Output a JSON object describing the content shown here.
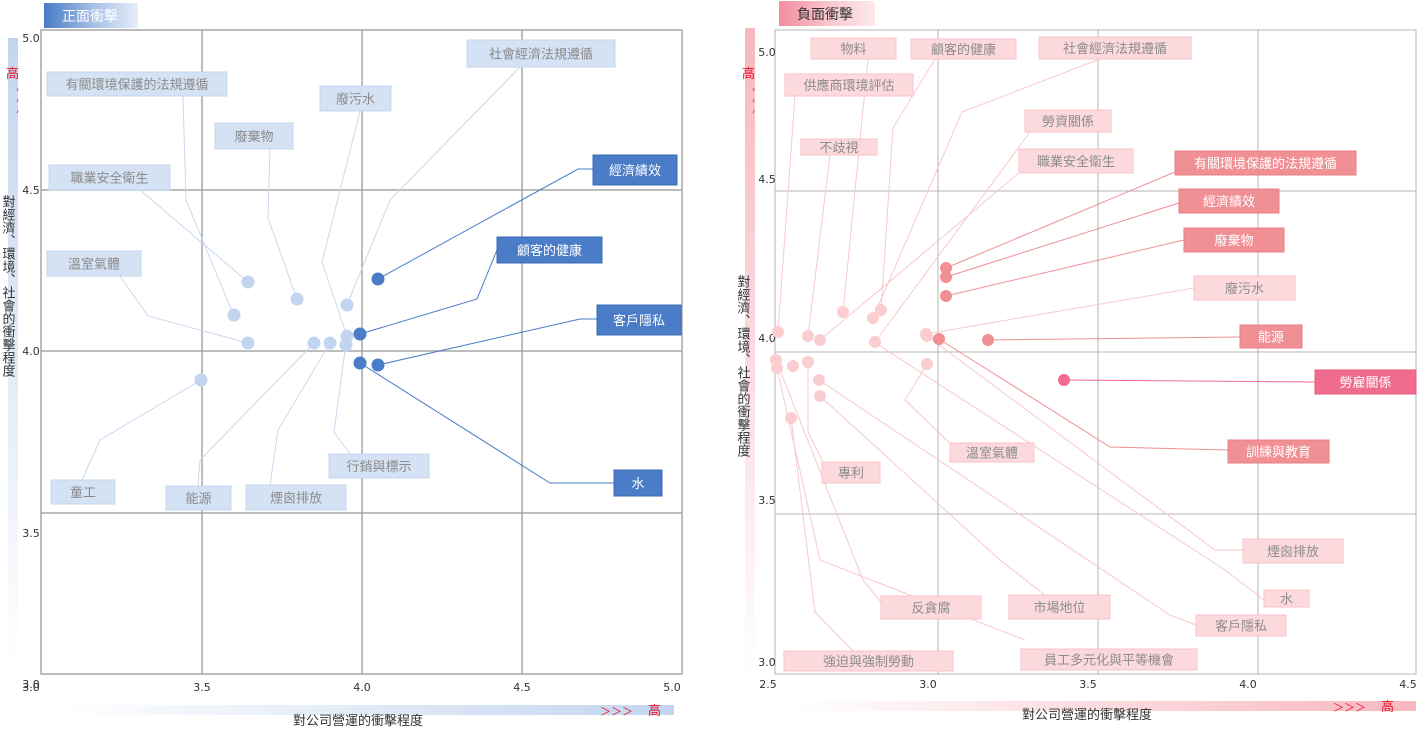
{
  "colors": {
    "pos_accent": "#4a7cc7",
    "pos_light": "#c3d5ee",
    "pos_label_text_dark": "#ffffff",
    "pos_label_text_light": "#8a8a8a",
    "neg_accent": "#f08f94",
    "neg_strong": "#f06c8e",
    "neg_light": "#fbcdd0",
    "grid": "#a6a6a6",
    "axis_text": "#333333",
    "high_marker": "#e8112d"
  },
  "common": {
    "y_axis_title": "對經濟、環境、社會的衝擊程度",
    "x_axis_title": "對公司營運的衝擊程度",
    "high_label": "高",
    "arrows": "＾＾＾",
    "x_arrows": "＞＞＞"
  },
  "chart_data": [
    {
      "type": "scatter",
      "title": "正面衝擊",
      "xlabel": "對公司營運的衝擊程度",
      "ylabel": "對經濟、環境、社會的衝擊程度",
      "xlim": [
        3.0,
        5.0
      ],
      "ylim": [
        2.0,
        5.0
      ],
      "x_ticks": [
        "3.0",
        "3.5",
        "4.0",
        "4.5",
        "5.0"
      ],
      "y_ticks": [
        "3.0",
        "3.5",
        "4.0",
        "4.5",
        "5.0"
      ],
      "grid": true,
      "points": [
        {
          "label": "經濟績效",
          "x": 4.05,
          "y": 4.22,
          "emphasis": "high"
        },
        {
          "label": "顧客的健康",
          "x": 4.0,
          "y": 4.05,
          "emphasis": "high"
        },
        {
          "label": "客戶隱私",
          "x": 4.05,
          "y": 3.96,
          "emphasis": "high"
        },
        {
          "label": "水",
          "x": 4.0,
          "y": 3.97,
          "emphasis": "high"
        },
        {
          "label": "社會經濟法規遵循",
          "x": 3.95,
          "y": 4.15,
          "emphasis": "low"
        },
        {
          "label": "廢污水",
          "x": 3.95,
          "y": 4.05,
          "emphasis": "low"
        },
        {
          "label": "有關環境保護的法規遵循",
          "x": 3.6,
          "y": 4.11,
          "emphasis": "low"
        },
        {
          "label": "廢棄物",
          "x": 3.8,
          "y": 4.16,
          "emphasis": "low"
        },
        {
          "label": "職業安全衛生",
          "x": 3.65,
          "y": 4.22,
          "emphasis": "low"
        },
        {
          "label": "溫室氣體",
          "x": 3.65,
          "y": 4.03,
          "emphasis": "low"
        },
        {
          "label": "童工",
          "x": 3.5,
          "y": 3.91,
          "emphasis": "low"
        },
        {
          "label": "能源",
          "x": 3.9,
          "y": 4.03,
          "emphasis": "low"
        },
        {
          "label": "煙囪排放",
          "x": 3.85,
          "y": 4.03,
          "emphasis": "low"
        },
        {
          "label": "行銷與標示",
          "x": 3.95,
          "y": 4.02,
          "emphasis": "low"
        }
      ]
    },
    {
      "type": "scatter",
      "title": "負面衝擊",
      "xlabel": "對公司營運的衝擊程度",
      "ylabel": "對經濟、環境、社會的衝擊程度",
      "xlim": [
        2.5,
        4.5
      ],
      "ylim": [
        2.0,
        5.0
      ],
      "x_ticks": [
        "2.5",
        "3.0",
        "3.5",
        "4.0",
        "4.5"
      ],
      "y_ticks": [
        "3.0",
        "3.5",
        "4.0",
        "4.5",
        "5.0"
      ],
      "grid": true,
      "points": [
        {
          "label": "勞雇關係",
          "x": 3.42,
          "y": 3.9,
          "emphasis": "top"
        },
        {
          "label": "有關環境保護的法規遵循",
          "x": 3.05,
          "y": 4.23,
          "emphasis": "high"
        },
        {
          "label": "經濟績效",
          "x": 3.05,
          "y": 4.2,
          "emphasis": "high"
        },
        {
          "label": "廢棄物",
          "x": 3.05,
          "y": 4.13,
          "emphasis": "high"
        },
        {
          "label": "能源",
          "x": 3.18,
          "y": 4.02,
          "emphasis": "high"
        },
        {
          "label": "訓練與教育",
          "x": 3.03,
          "y": 4.02,
          "emphasis": "high"
        },
        {
          "label": "廢污水",
          "x": 3.0,
          "y": 4.03,
          "emphasis": "low"
        },
        {
          "label": "物料",
          "x": 2.73,
          "y": 4.09,
          "emphasis": "low"
        },
        {
          "label": "顧客的健康",
          "x": 2.85,
          "y": 4.1,
          "emphasis": "low"
        },
        {
          "label": "社會經濟法規遵循",
          "x": 2.83,
          "y": 4.08,
          "emphasis": "low"
        },
        {
          "label": "供應商環境評估",
          "x": 2.53,
          "y": 4.04,
          "emphasis": "low"
        },
        {
          "label": "不歧視",
          "x": 2.62,
          "y": 4.03,
          "emphasis": "low"
        },
        {
          "label": "勞資關係",
          "x": 2.83,
          "y": 4.01,
          "emphasis": "low"
        },
        {
          "label": "職業安全衛生",
          "x": 2.66,
          "y": 4.02,
          "emphasis": "low"
        },
        {
          "label": "溫室氣體",
          "x": 2.99,
          "y": 3.96,
          "emphasis": "low"
        },
        {
          "label": "專利",
          "x": 2.58,
          "y": 3.95,
          "emphasis": "low"
        },
        {
          "label": "煙囪排放",
          "x": 2.99,
          "y": 3.95,
          "emphasis": "low"
        },
        {
          "label": "水",
          "x": 2.66,
          "y": 3.9,
          "emphasis": "low"
        },
        {
          "label": "客戶隱私",
          "x": 2.62,
          "y": 3.94,
          "emphasis": "low"
        },
        {
          "label": "反貪腐",
          "x": 2.53,
          "y": 3.95,
          "emphasis": "low"
        },
        {
          "label": "市場地位",
          "x": 2.66,
          "y": 3.85,
          "emphasis": "low"
        },
        {
          "label": "員工多元化與平等機會",
          "x": 2.53,
          "y": 3.93,
          "emphasis": "low"
        },
        {
          "label": "強迫與強制勞動",
          "x": 2.57,
          "y": 3.78,
          "emphasis": "low"
        }
      ]
    }
  ]
}
